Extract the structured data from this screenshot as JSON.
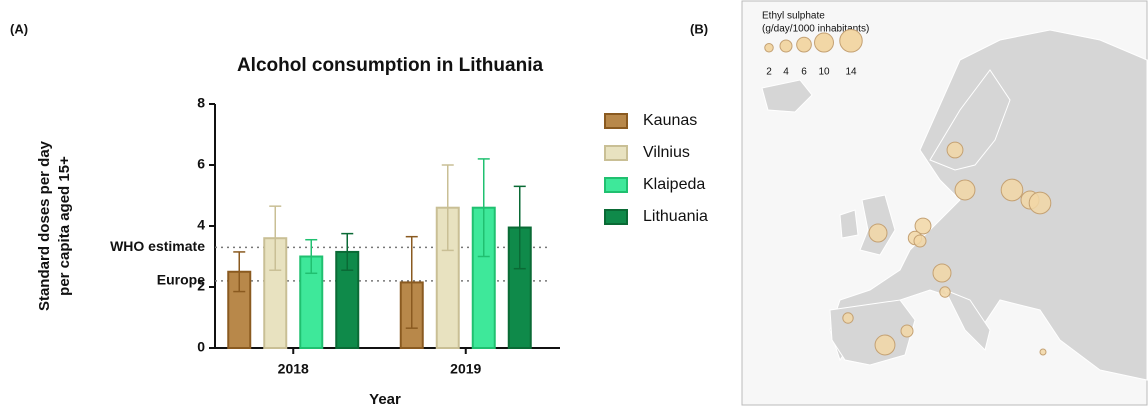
{
  "panel_labels": [
    "(A)",
    "(B)"
  ],
  "chart_data": [
    {
      "type": "bar",
      "title": "Alcohol consumption in Lithuania",
      "ylabel": [
        "Standard doses per day",
        "per capita aged 15+"
      ],
      "xlabel": "Year",
      "categories": [
        "2018",
        "2019"
      ],
      "series": [
        {
          "name": "Kaunas",
          "color": "#b8884a",
          "edge": "#8a5a20",
          "values": [
            2.5,
            2.15
          ],
          "errors": [
            0.65,
            1.5
          ]
        },
        {
          "name": "Vilnius",
          "color": "#e8e2c0",
          "edge": "#c9bf95",
          "values": [
            3.6,
            4.6
          ],
          "errors": [
            1.05,
            1.4
          ]
        },
        {
          "name": "Klaipeda",
          "color": "#3ee89a",
          "edge": "#20c070",
          "values": [
            3.0,
            4.6
          ],
          "errors": [
            0.55,
            1.6
          ]
        },
        {
          "name": "Lithuania",
          "color": "#0f8a4a",
          "edge": "#0a6a35",
          "values": [
            3.15,
            3.95
          ],
          "errors": [
            0.6,
            1.35
          ]
        }
      ],
      "reference_lines": [
        {
          "label": "WHO estimate",
          "value": 3.3
        },
        {
          "label": "Europe",
          "value": 2.2
        }
      ],
      "ylim": [
        0,
        8
      ],
      "yticks": [
        0,
        2,
        4,
        6,
        8
      ],
      "grid": false,
      "legend": "right"
    },
    {
      "type": "bubble-map",
      "title": [
        "Ethyl sulphate",
        "(g/day/1000 inhabitants)"
      ],
      "legend_sizes": [
        2,
        4,
        6,
        10,
        14
      ],
      "color": "#f2d7a6",
      "edge": "#c4a173",
      "values": [
        7,
        11,
        13,
        9,
        13,
        9,
        7,
        5,
        4,
        9,
        3,
        3,
        11,
        4,
        1
      ]
    }
  ]
}
